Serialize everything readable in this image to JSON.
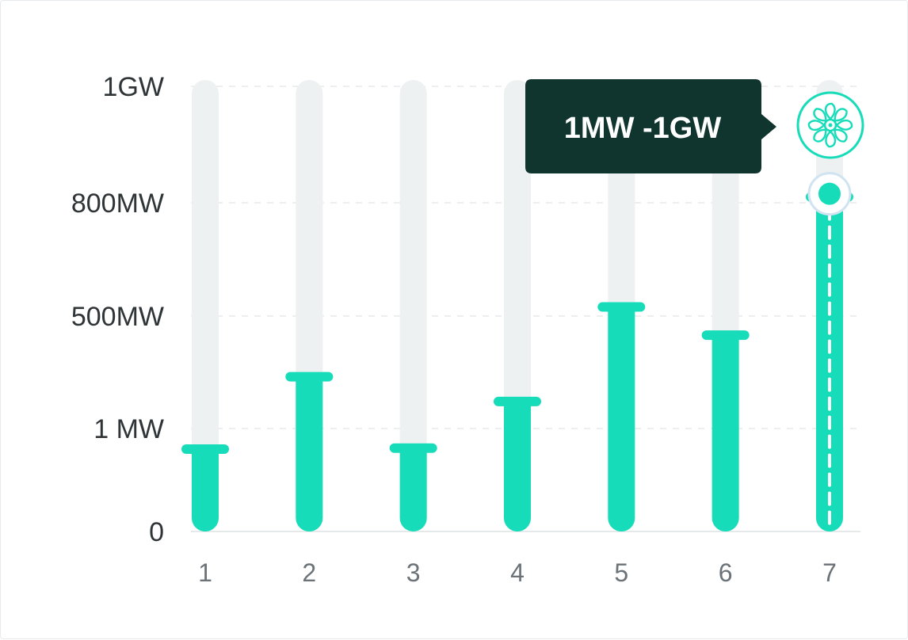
{
  "colors": {
    "accent": "#17dcb9",
    "track": "#eef1f2",
    "grid": "#e6e9ea",
    "tooltip_bg": "#0f352e",
    "tooltip_text": "#ffffff",
    "axis_text": "#2f3437",
    "category_text": "#6b7378"
  },
  "chart_data": {
    "type": "bar",
    "title": "",
    "xlabel": "",
    "ylabel": "",
    "categories": [
      "1",
      "2",
      "3",
      "4",
      "5",
      "6",
      "7"
    ],
    "y_ticks": [
      {
        "label": "0",
        "level": 0
      },
      {
        "label": "1 MW",
        "level": 1
      },
      {
        "label": "500MW",
        "level": 2
      },
      {
        "label": "800MW",
        "level": 3
      },
      {
        "label": "1GW",
        "level": 4
      }
    ],
    "ylim_level": [
      0,
      4
    ],
    "values_level": [
      0.8,
      1.46,
      0.81,
      1.24,
      2.08,
      1.83,
      3.05
    ],
    "grid": true,
    "highlighted_category": "7",
    "tooltip": {
      "text": "1MW -1GW",
      "icon": "wind-turbine-icon"
    }
  }
}
